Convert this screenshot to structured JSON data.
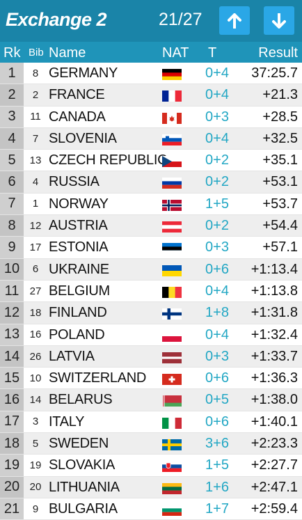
{
  "header": {
    "title": "Exchange 2",
    "counter": "21/27"
  },
  "columns": {
    "rk": "Rk",
    "bib": "Bib",
    "name": "Name",
    "nat": "NAT",
    "t": "T",
    "result": "Result"
  },
  "rows": [
    {
      "rk": "1",
      "bib": "8",
      "name": "GERMANY",
      "flag": "germany-flag",
      "t": "0+4",
      "result": "37:25.7"
    },
    {
      "rk": "2",
      "bib": "2",
      "name": "FRANCE",
      "flag": "france-flag",
      "t": "0+4",
      "result": "+21.3"
    },
    {
      "rk": "3",
      "bib": "11",
      "name": "CANADA",
      "flag": "canada-flag",
      "t": "0+3",
      "result": "+28.5"
    },
    {
      "rk": "4",
      "bib": "7",
      "name": "SLOVENIA",
      "flag": "slovenia-flag",
      "t": "0+4",
      "result": "+32.5"
    },
    {
      "rk": "5",
      "bib": "13",
      "name": "CZECH REPUBLIC",
      "flag": "czech-flag",
      "t": "0+2",
      "result": "+35.1"
    },
    {
      "rk": "6",
      "bib": "4",
      "name": "RUSSIA",
      "flag": "russia-flag",
      "t": "0+2",
      "result": "+53.1"
    },
    {
      "rk": "7",
      "bib": "1",
      "name": "NORWAY",
      "flag": "norway-flag",
      "t": "1+5",
      "result": "+53.7"
    },
    {
      "rk": "8",
      "bib": "12",
      "name": "AUSTRIA",
      "flag": "austria-flag",
      "t": "0+2",
      "result": "+54.4"
    },
    {
      "rk": "9",
      "bib": "17",
      "name": "ESTONIA",
      "flag": "estonia-flag",
      "t": "0+3",
      "result": "+57.1"
    },
    {
      "rk": "10",
      "bib": "6",
      "name": "UKRAINE",
      "flag": "ukraine-flag",
      "t": "0+6",
      "result": "+1:13.4"
    },
    {
      "rk": "11",
      "bib": "27",
      "name": "BELGIUM",
      "flag": "belgium-flag",
      "t": "0+4",
      "result": "+1:13.8"
    },
    {
      "rk": "12",
      "bib": "18",
      "name": "FINLAND",
      "flag": "finland-flag",
      "t": "1+8",
      "result": "+1:31.8"
    },
    {
      "rk": "13",
      "bib": "16",
      "name": "POLAND",
      "flag": "poland-flag",
      "t": "0+4",
      "result": "+1:32.4"
    },
    {
      "rk": "14",
      "bib": "26",
      "name": "LATVIA",
      "flag": "latvia-flag",
      "t": "0+3",
      "result": "+1:33.7"
    },
    {
      "rk": "15",
      "bib": "10",
      "name": "SWITZERLAND",
      "flag": "switzerland-flag",
      "t": "0+6",
      "result": "+1:36.3"
    },
    {
      "rk": "16",
      "bib": "14",
      "name": "BELARUS",
      "flag": "belarus-flag",
      "t": "0+5",
      "result": "+1:38.0"
    },
    {
      "rk": "17",
      "bib": "3",
      "name": "ITALY",
      "flag": "italy-flag",
      "t": "0+6",
      "result": "+1:40.1"
    },
    {
      "rk": "18",
      "bib": "5",
      "name": "SWEDEN",
      "flag": "sweden-flag",
      "t": "3+6",
      "result": "+2:23.3"
    },
    {
      "rk": "19",
      "bib": "19",
      "name": "SLOVAKIA",
      "flag": "slovakia-flag",
      "t": "1+5",
      "result": "+2:27.7"
    },
    {
      "rk": "20",
      "bib": "20",
      "name": "LITHUANIA",
      "flag": "lithuania-flag",
      "t": "1+6",
      "result": "+2:47.1"
    },
    {
      "rk": "21",
      "bib": "9",
      "name": "BULGARIA",
      "flag": "bulgaria-flag",
      "t": "1+7",
      "result": "+2:59.4"
    }
  ],
  "colors": {
    "header_bg": "#1a84a8",
    "page_bg": "#1f94b9",
    "button_bg": "#2aa7e6",
    "penalty_text": "#22a7c4"
  }
}
